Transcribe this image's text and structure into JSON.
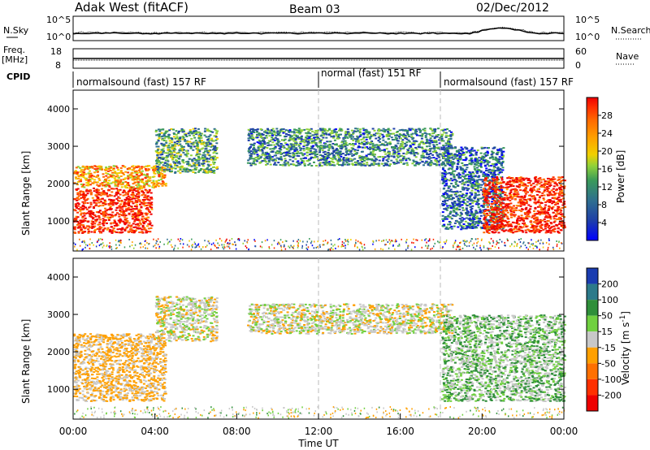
{
  "header": {
    "site": "Adak West (fitACF)",
    "beam": "Beam 03",
    "date": "02/Dec/2012"
  },
  "top_panels": {
    "nsky_label": "N.Sky",
    "nsearch_label": "N.Search",
    "noise_ticks_left": [
      "10^5",
      "10^0"
    ],
    "noise_ticks_right": [
      "10^5",
      "10^0"
    ],
    "freq_label": "Freq.",
    "freq_unit": "[MHz]",
    "freq_ticks": [
      "18",
      "8"
    ],
    "nave_label": "Nave",
    "nave_ticks": [
      "60",
      "0"
    ],
    "cpid_label": "CPID",
    "cpid_segments": [
      {
        "label": "normalsound (fast) 157 RF",
        "start_hour": 0,
        "end_hour": 12
      },
      {
        "label": "normal (fast) 151 RF",
        "start_hour": 12,
        "end_hour": 18
      },
      {
        "label": "normalsound (fast) 157 RF",
        "start_hour": 18,
        "end_hour": 24
      }
    ]
  },
  "chart_data": [
    {
      "type": "heatmap",
      "panel": "power",
      "xlabel": "",
      "ylabel": "Slant Range [km]",
      "xlim": [
        0,
        24
      ],
      "ylim": [
        200,
        4500
      ],
      "yticks": [
        1000,
        2000,
        3000,
        4000
      ],
      "colorbar": {
        "label": "Power [dB]",
        "ticks": [
          "4",
          "8",
          "12",
          "16",
          "20",
          "24",
          "28"
        ],
        "colors": [
          "#0000ff",
          "#1e3fa8",
          "#2f6f8f",
          "#3a9a5a",
          "#8ed13a",
          "#f0d000",
          "#ffa000",
          "#ff6a00",
          "#ff3000",
          "#ee0000"
        ]
      },
      "echo_regions": [
        {
          "start_hour": 0.0,
          "end_hour": 3.8,
          "range_min": 700,
          "range_max": 1900,
          "power_db": 28
        },
        {
          "start_hour": 0.0,
          "end_hour": 4.5,
          "range_min": 1900,
          "range_max": 2500,
          "power_db": 20
        },
        {
          "start_hour": 4.0,
          "end_hour": 7.0,
          "range_min": 2300,
          "range_max": 3500,
          "power_db": 10
        },
        {
          "start_hour": 8.5,
          "end_hour": 18.5,
          "range_min": 2500,
          "range_max": 3500,
          "power_db": 8
        },
        {
          "start_hour": 18.0,
          "end_hour": 21.0,
          "range_min": 800,
          "range_max": 3000,
          "power_db": 6
        },
        {
          "start_hour": 20.0,
          "end_hour": 24.0,
          "range_min": 700,
          "range_max": 2200,
          "power_db": 28
        }
      ]
    },
    {
      "type": "heatmap",
      "panel": "velocity",
      "xlabel": "Time UT",
      "ylabel": "Slant Range [km]",
      "xlim": [
        0,
        24
      ],
      "ylim": [
        200,
        4500
      ],
      "xticks": [
        "00:00",
        "04:00",
        "08:00",
        "12:00",
        "16:00",
        "20:00",
        "00:00"
      ],
      "yticks": [
        1000,
        2000,
        3000,
        4000
      ],
      "colorbar": {
        "label": "Velocity [m s^-1]",
        "ticks": [
          "200",
          "100",
          "50",
          "15",
          "-15",
          "-50",
          "-100",
          "-200"
        ],
        "colors": [
          "#1a3cb0",
          "#2c7a8a",
          "#2f8f3a",
          "#70d040",
          "#c8c8c8",
          "#ffa000",
          "#ff7000",
          "#ff3000",
          "#ee0000"
        ]
      },
      "echo_regions": [
        {
          "start_hour": 0.0,
          "end_hour": 4.5,
          "range_min": 700,
          "range_max": 2500,
          "velocity_ms": -20
        },
        {
          "start_hour": 4.0,
          "end_hour": 7.0,
          "range_min": 2300,
          "range_max": 3500,
          "velocity_ms": 0
        },
        {
          "start_hour": 8.5,
          "end_hour": 18.5,
          "range_min": 2500,
          "range_max": 3300,
          "velocity_ms": 0
        },
        {
          "start_hour": 18.0,
          "end_hour": 24.0,
          "range_min": 700,
          "range_max": 3000,
          "velocity_ms": 20
        }
      ]
    }
  ]
}
